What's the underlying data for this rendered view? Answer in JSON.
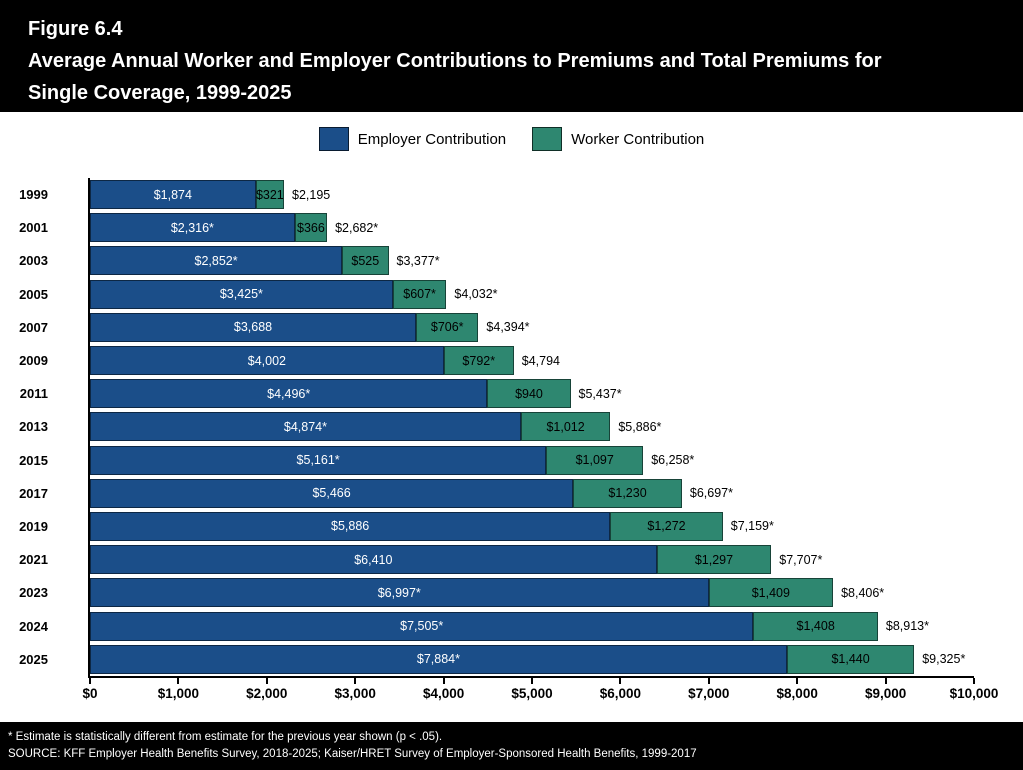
{
  "header": {
    "figure_label": "Figure 6.4",
    "title_line_1": "Average Annual Worker and Employer Contributions to Premiums and Total Premiums for",
    "title_line_2": "Single Coverage, 1999-2025"
  },
  "legend": {
    "items": [
      {
        "label": "Employer Contribution",
        "color": "#1b4e89"
      },
      {
        "label": "Worker Contribution",
        "color": "#2e8770"
      }
    ]
  },
  "chart_data": {
    "type": "bar",
    "orientation": "horizontal",
    "stacked": true,
    "title": "Average Annual Worker and Employer Contributions to Premiums and Total Premiums for Single Coverage, 1999-2025",
    "categories": [
      "1999",
      "2001",
      "2003",
      "2005",
      "2007",
      "2009",
      "2011",
      "2013",
      "2015",
      "2017",
      "2019",
      "2021",
      "2023",
      "2024",
      "2025"
    ],
    "series": [
      {
        "name": "Employer Contribution",
        "color": "#1b4e89",
        "values": [
          1874,
          2316,
          2852,
          3425,
          3688,
          4002,
          4496,
          4874,
          5161,
          5466,
          5886,
          6410,
          6997,
          7505,
          7884
        ],
        "labels": [
          "$1,874",
          "$2,316*",
          "$2,852*",
          "$3,425*",
          "$3,688",
          "$4,002",
          "$4,496*",
          "$4,874*",
          "$5,161*",
          "$5,466",
          "$5,886",
          "$6,410",
          "$6,997*",
          "$7,505*",
          "$7,884*"
        ]
      },
      {
        "name": "Worker Contribution",
        "color": "#2e8770",
        "values": [
          321,
          366,
          525,
          607,
          706,
          792,
          940,
          1012,
          1097,
          1230,
          1272,
          1297,
          1409,
          1408,
          1440
        ],
        "labels": [
          "$321",
          "$366",
          "$525",
          "$607*",
          "$706*",
          "$792*",
          "$940",
          "$1,012",
          "$1,097",
          "$1,230",
          "$1,272",
          "$1,297",
          "$1,409",
          "$1,408",
          "$1,440"
        ]
      }
    ],
    "total_labels": [
      "$2,195",
      "$2,682*",
      "$3,377*",
      "$4,032*",
      "$4,394*",
      "$4,794",
      "$5,437*",
      "$5,886*",
      "$6,258*",
      "$6,697*",
      "$7,159*",
      "$7,707*",
      "$8,406*",
      "$8,913*",
      "$9,325*"
    ],
    "x_ticks": [
      0,
      1000,
      2000,
      3000,
      4000,
      5000,
      6000,
      7000,
      8000,
      9000,
      10000
    ],
    "x_tick_labels": [
      "$0",
      "$1,000",
      "$2,000",
      "$3,000",
      "$4,000",
      "$5,000",
      "$6,000",
      "$7,000",
      "$8,000",
      "$9,000",
      "$10,000"
    ],
    "xlim": [
      0,
      10000
    ],
    "grid": false,
    "legend_position": "top"
  },
  "footer": {
    "note": "* Estimate is statistically different from estimate for the previous year shown (p < .05).",
    "source": "SOURCE: KFF Employer Health Benefits Survey, 2018-2025; Kaiser/HRET Survey of Employer-Sponsored Health Benefits, 1999-2017"
  }
}
